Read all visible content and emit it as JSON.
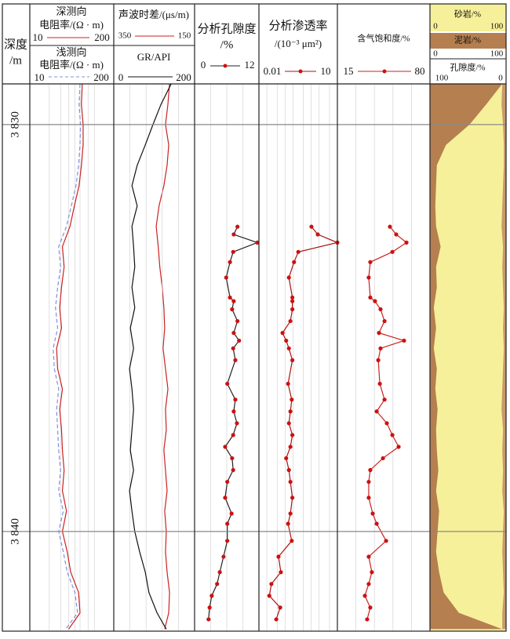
{
  "chart_data": {
    "type": "well_log",
    "depth_label": [
      "深度",
      "/m"
    ],
    "ylim": [
      3829,
      3842.45
    ],
    "yticks": [
      {
        "value": 3830,
        "label": "3 830"
      },
      {
        "value": 3840,
        "label": "3 840"
      }
    ],
    "log_depth": [
      3829,
      3829.5,
      3830,
      3830.5,
      3831,
      3831.5,
      3832,
      3832.5,
      3833,
      3833.5,
      3834,
      3834.5,
      3835,
      3835.5,
      3836,
      3836.5,
      3837,
      3837.5,
      3838,
      3838.5,
      3839,
      3839.5,
      3840,
      3840.5,
      3841,
      3841.5,
      3842,
      3842.4
    ],
    "core_depth": [
      3832.51,
      3832.7,
      3832.9,
      3833.13,
      3833.38,
      3833.76,
      3834.25,
      3834.34,
      3834.54,
      3834.83,
      3835.12,
      3835.31,
      3835.5,
      3835.79,
      3836.37,
      3836.76,
      3837.05,
      3837.34,
      3837.63,
      3837.92,
      3838.2,
      3838.49,
      3838.78,
      3839.17,
      3839.56,
      3839.81,
      3840.23,
      3840.62,
      3841.0,
      3841.29,
      3841.58,
      3841.87,
      3842.16
    ],
    "tracks": [
      {
        "log": true,
        "series": [
          {
            "name": [
              "深测向",
              "电阻率/(Ω · m)"
            ],
            "color": "#cc2222",
            "xlim": [
              10,
              200
            ],
            "xticks": [
              10,
              20,
              30,
              40,
              50,
              60,
              80,
              100,
              200
            ],
            "values": [
              65,
              63,
              67,
              67,
              63,
              58,
              49,
              42,
              32,
              34,
              31,
              29,
              31,
              26,
              27,
              32,
              29,
              31,
              32,
              34,
              32,
              37,
              32,
              38,
              43,
              57,
              60,
              40
            ]
          },
          {
            "name": [
              "浅测向",
              "电阻率/(Ω · m)"
            ],
            "color": "#8090dd",
            "dash": true,
            "xlim": [
              10,
              200
            ],
            "values": [
              60,
              58,
              61,
              60,
              57,
              52,
              44,
              37,
              28,
              30,
              27,
              25,
              27,
              23,
              24,
              28,
              26,
              27,
              28,
              30,
              28,
              33,
              28,
              33,
              38,
              50,
              55,
              36
            ]
          }
        ]
      },
      {
        "series": [
          {
            "name": "声波时差/(μs/m)",
            "color": "#cc2222",
            "xlim": [
              350,
              150
            ],
            "values": [
              212,
              216,
              222,
              214,
              218,
              226,
              238,
              245,
              240,
              236,
              230,
              226,
              224,
              228,
              222,
              216,
              222,
              220,
              226,
              222,
              218,
              224,
              220,
              222,
              218,
              212,
              214,
              224
            ]
          },
          {
            "name": "GR/API",
            "color": "#111111",
            "xlim": [
              0,
              200
            ],
            "xticks": [
              0,
              40,
              80,
              120,
              160,
              200
            ],
            "values": [
              142,
              117,
              97,
              78,
              58,
              45,
              58,
              45,
              49,
              52,
              45,
              52,
              41,
              49,
              39,
              45,
              49,
              45,
              41,
              49,
              39,
              45,
              52,
              64,
              78,
              87,
              107,
              130
            ]
          }
        ]
      },
      {
        "title": [
          "分析孔隙度",
          "/%"
        ],
        "series": [
          {
            "color": "#222222",
            "marker_color": "#cc1111",
            "markers": true,
            "xlim": [
              0,
              12
            ],
            "xticks": [
              0,
              3,
              6,
              9,
              12
            ],
            "values": [
              8.0,
              7.3,
              11.7,
              7.2,
              6.6,
              5.9,
              6.6,
              7.3,
              7.0,
              8.0,
              7.3,
              8.3,
              7.2,
              7.6,
              6.1,
              7.6,
              7.3,
              7.9,
              7.2,
              5.7,
              7.0,
              7.2,
              6.1,
              5.7,
              6.9,
              6.1,
              6.1,
              5.4,
              4.7,
              4.2,
              3.2,
              2.8,
              2.6
            ]
          }
        ]
      },
      {
        "title": [
          "分析渗透率",
          "/(10⁻³ μm²)"
        ],
        "log": true,
        "series": [
          {
            "color": "#aa1111",
            "marker_color": "#cc1111",
            "markers": true,
            "xlim": [
              0.01,
              10
            ],
            "xticks": [
              0.01,
              0.02,
              0.05,
              0.1,
              0.2,
              0.5,
              1,
              2,
              5,
              10
            ],
            "values": [
              1.02,
              1.78,
              10,
              0.32,
              0.22,
              0.14,
              0.19,
              0.19,
              0.19,
              0.16,
              0.08,
              0.11,
              0.14,
              0.19,
              0.13,
              0.18,
              0.16,
              0.14,
              0.19,
              0.16,
              0.11,
              0.14,
              0.16,
              0.19,
              0.16,
              0.13,
              0.18,
              0.056,
              0.069,
              0.03,
              0.025,
              0.065,
              0.046
            ]
          }
        ]
      },
      {
        "title": [
          "含气饱和度/%"
        ],
        "series": [
          {
            "color": "#cc2222",
            "marker_color": "#cc1111",
            "markers": true,
            "xlim": [
              15,
              80
            ],
            "xticks": [
              15,
              28,
              41,
              54,
              67,
              80
            ],
            "values": [
              51.9,
              56.3,
              63.5,
              53.6,
              38.1,
              37.0,
              38.1,
              41.4,
              45.3,
              48.1,
              44.2,
              61.8,
              45.3,
              43.7,
              44.8,
              48.1,
              42.6,
              49.7,
              53.6,
              58.0,
              47.0,
              38.1,
              37.0,
              37.0,
              39.8,
              42.6,
              49.2,
              37.0,
              39.2,
              37.0,
              34.3,
              38.1,
              35.9
            ]
          }
        ]
      },
      {
        "fill": true,
        "series": [
          {
            "name": "砂岩/%",
            "color": "#f6f09a",
            "xlim": [
              0,
              100
            ]
          },
          {
            "name": "泥岩/%",
            "color": "#b57f4f",
            "xlim": [
              0,
              100
            ],
            "values": [
              95,
              74,
              52,
              21,
              9,
              8,
              7,
              8,
              14,
              8,
              9,
              5,
              8,
              5,
              9,
              7,
              10,
              8,
              9,
              11,
              8,
              12,
              10,
              8,
              12,
              18,
              38,
              95
            ]
          },
          {
            "name": "孔隙度/%",
            "color": "#c99a6a",
            "xlim": [
              100,
              0
            ],
            "values": [
              5,
              6,
              4,
              3,
              3,
              4,
              5,
              6,
              4,
              5,
              4,
              3,
              4,
              3,
              4,
              5,
              6,
              4,
              5,
              4,
              5,
              3,
              4,
              5,
              4,
              3,
              5,
              5
            ]
          }
        ]
      }
    ]
  }
}
